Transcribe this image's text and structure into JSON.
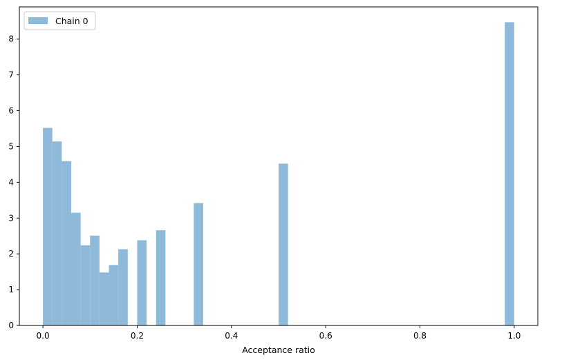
{
  "chart_data": {
    "type": "bar",
    "title": "",
    "xlabel": "Acceptance ratio",
    "ylabel": "",
    "xlim": [
      -0.05,
      1.05
    ],
    "ylim": [
      0,
      8.9
    ],
    "grid": false,
    "legend_position": "top-left",
    "bin_width": 0.02,
    "x_ticks": [
      0.0,
      0.2,
      0.4,
      0.6,
      0.8,
      1.0
    ],
    "x_tick_labels": [
      "0.0",
      "0.2",
      "0.4",
      "0.6",
      "0.8",
      "1.0"
    ],
    "y_ticks": [
      0,
      1,
      2,
      3,
      4,
      5,
      6,
      7,
      8
    ],
    "y_tick_labels": [
      "0",
      "1",
      "2",
      "3",
      "4",
      "5",
      "6",
      "7",
      "8"
    ],
    "series": [
      {
        "name": "Chain 0",
        "color": "#8fb9d9",
        "bin_starts": [
          0.0,
          0.02,
          0.04,
          0.06,
          0.08,
          0.1,
          0.12,
          0.14,
          0.16,
          0.2,
          0.24,
          0.32,
          0.5,
          0.98
        ],
        "values": [
          5.52,
          5.14,
          4.59,
          3.15,
          2.24,
          2.51,
          1.48,
          1.69,
          2.13,
          2.38,
          2.66,
          3.42,
          4.52,
          8.47
        ]
      }
    ]
  }
}
